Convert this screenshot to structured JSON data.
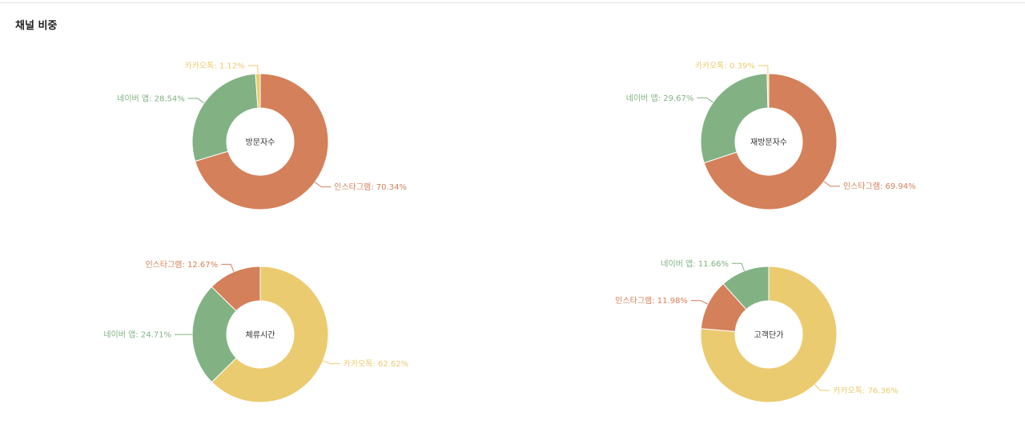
{
  "section": {
    "title": "채널 비중"
  },
  "colors": {
    "instagram": "#d4805a",
    "naver": "#82b284",
    "kakao": "#ebcb70"
  },
  "chart_data": [
    {
      "type": "pie",
      "center_label": "방문자수",
      "slices": [
        {
          "label": "인스타그램",
          "value": 70.34,
          "text": "인스타그램: 70.34%",
          "color": "instagram"
        },
        {
          "label": "네이버 앱",
          "value": 28.54,
          "text": "네이버 앱: 28.54%",
          "color": "naver"
        },
        {
          "label": "카카오톡",
          "value": 1.12,
          "text": "카카오톡: 1.12%",
          "color": "kakao"
        }
      ]
    },
    {
      "type": "pie",
      "center_label": "재방문자수",
      "slices": [
        {
          "label": "인스타그램",
          "value": 69.94,
          "text": "인스타그램: 69.94%",
          "color": "instagram"
        },
        {
          "label": "네이버 앱",
          "value": 29.67,
          "text": "네이버 앱: 29.67%",
          "color": "naver"
        },
        {
          "label": "카카오톡",
          "value": 0.39,
          "text": "카카오톡: 0.39%",
          "color": "kakao"
        }
      ]
    },
    {
      "type": "pie",
      "center_label": "체류시간",
      "slices": [
        {
          "label": "카카오톡",
          "value": 62.62,
          "text": "카카오톡: 62.62%",
          "color": "kakao"
        },
        {
          "label": "네이버 앱",
          "value": 24.71,
          "text": "네이버 앱: 24.71%",
          "color": "naver"
        },
        {
          "label": "인스타그램",
          "value": 12.67,
          "text": "인스타그램: 12.67%",
          "color": "instagram"
        }
      ]
    },
    {
      "type": "pie",
      "center_label": "고객단가",
      "slices": [
        {
          "label": "카카오톡",
          "value": 76.36,
          "text": "카카오톡: 76.36%",
          "color": "kakao"
        },
        {
          "label": "인스타그램",
          "value": 11.98,
          "text": "인스타그램: 11.98%",
          "color": "instagram"
        },
        {
          "label": "네이버 앱",
          "value": 11.66,
          "text": "네이버 앱: 11.66%",
          "color": "naver"
        }
      ]
    }
  ]
}
